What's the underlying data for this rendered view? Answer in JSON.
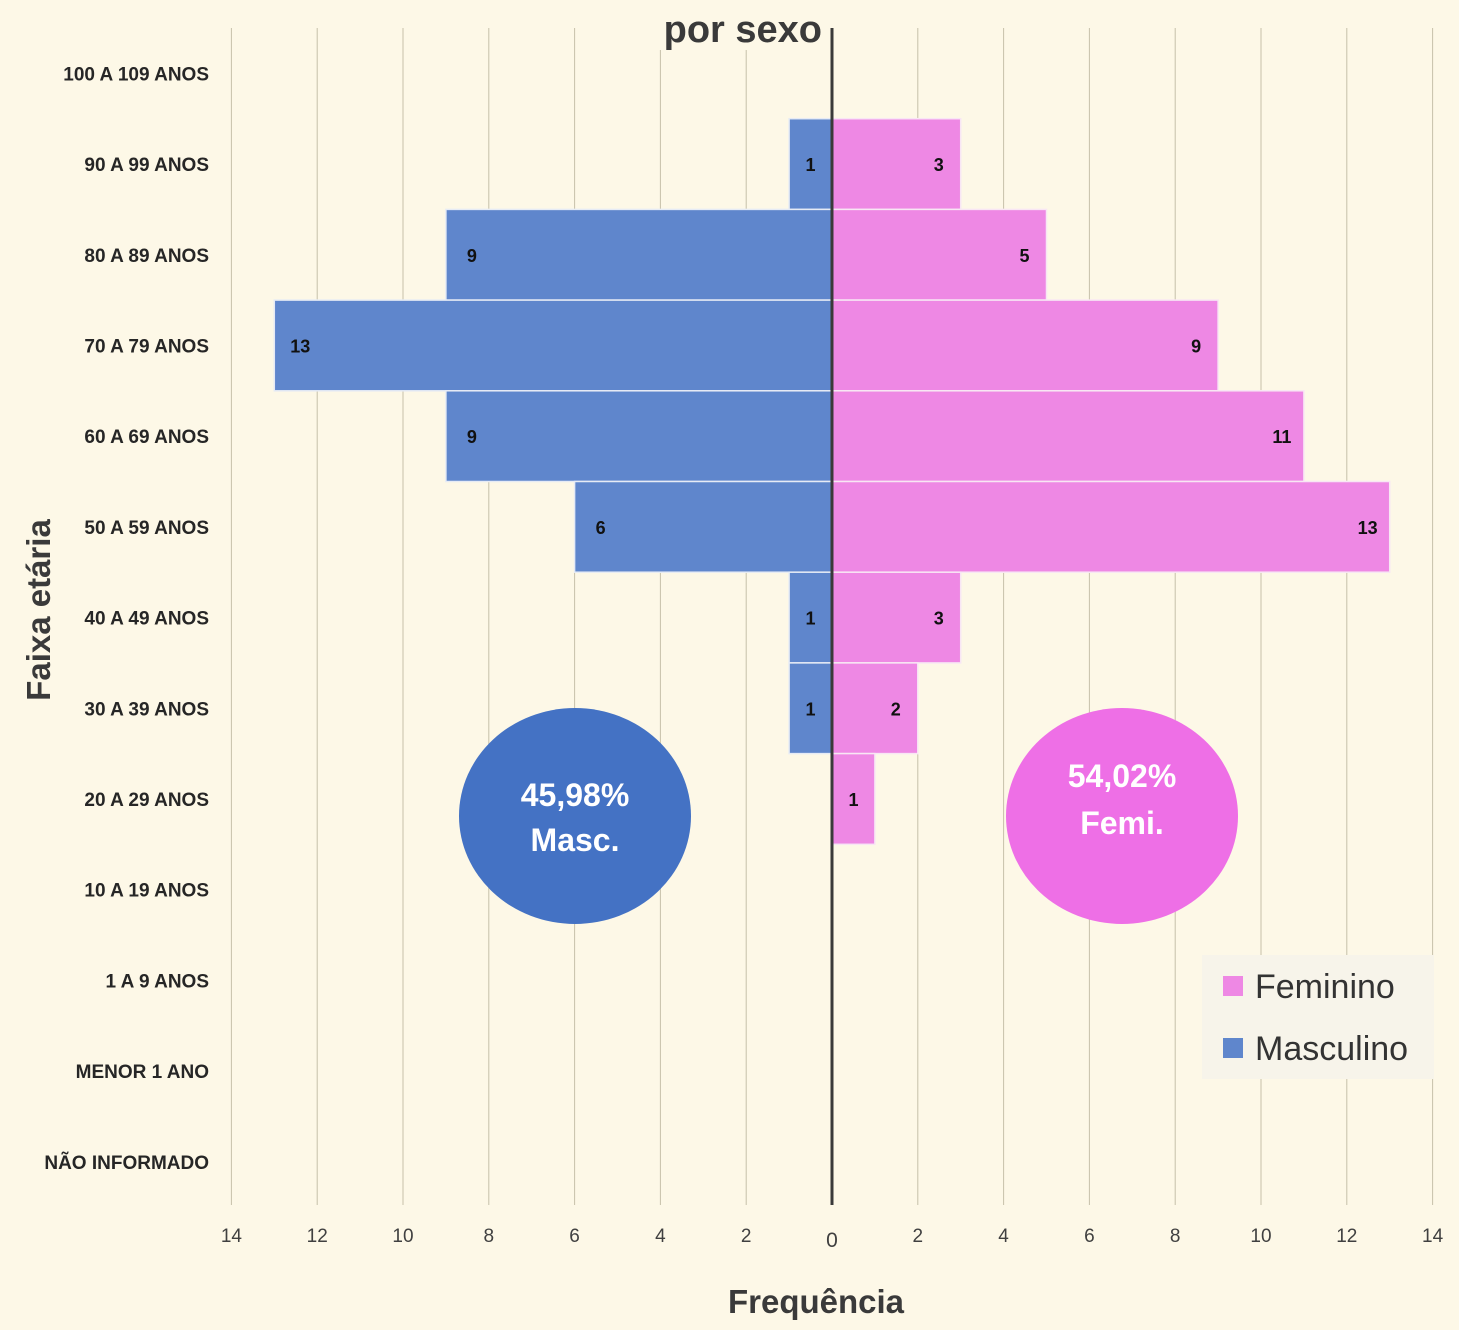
{
  "chart_data": {
    "type": "bar",
    "orientation": "horizontal-population-pyramid",
    "title": "por sexo",
    "xlabel": "Frequência",
    "ylabel": "Faixa etária",
    "categories": [
      "100 A 109 ANOS",
      "90 A 99 ANOS",
      "80 A 89 ANOS",
      "70 A 79 ANOS",
      "60 A 69 ANOS",
      "50 A 59 ANOS",
      "40 A 49 ANOS",
      "30 A 39 ANOS",
      "20 A 29 ANOS",
      "10 A 19 ANOS",
      "1 A 9 ANOS",
      "MENOR 1 ANO",
      "NÃO INFORMADO"
    ],
    "series": [
      {
        "name": "Masculino",
        "color": "#4472c4",
        "values": [
          null,
          1,
          9,
          13,
          9,
          6,
          1,
          1,
          null,
          null,
          null,
          null,
          null
        ]
      },
      {
        "name": "Feminino",
        "color": "#ee82ee",
        "values": [
          null,
          3,
          5,
          9,
          11,
          13,
          3,
          2,
          1,
          null,
          null,
          null,
          null
        ]
      }
    ],
    "xlim": [
      -14,
      14
    ],
    "x_ticks": [
      "14",
      "12",
      "10",
      "8",
      "6",
      "4",
      "2",
      "0",
      "2",
      "4",
      "6",
      "8",
      "10",
      "12",
      "14"
    ],
    "grid": true,
    "legend_position": "bottom-right",
    "annotations": [
      {
        "series": "Masculino",
        "percent": "45,98%",
        "label": "Masc.",
        "color": "#4472c4"
      },
      {
        "series": "Feminino",
        "percent": "54,02%",
        "label": "Femi.",
        "color": "#ee6fe6"
      }
    ]
  }
}
